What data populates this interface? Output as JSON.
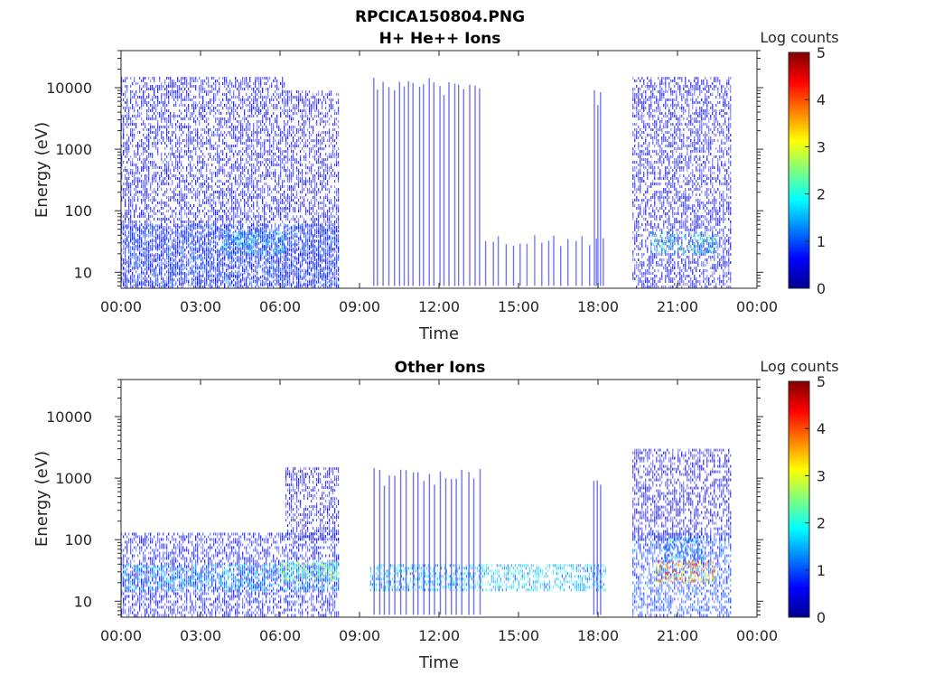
{
  "figure": {
    "title": "RPCICA150804.PNG"
  },
  "chart_data": [
    {
      "type": "heatmap",
      "title": "H+ He++ Ions",
      "xlabel": "Time",
      "ylabel": "Energy (eV)",
      "x_tick_labels": [
        "00:00",
        "03:00",
        "06:00",
        "09:00",
        "12:00",
        "15:00",
        "18:00",
        "21:00",
        "00:00"
      ],
      "x_tick_hours": [
        0,
        3,
        6,
        9,
        12,
        15,
        18,
        21,
        24
      ],
      "xlim_hours": [
        0,
        24
      ],
      "y_scale": "log",
      "ylim": [
        5.5,
        40000
      ],
      "y_ticks": [
        10,
        100,
        1000,
        10000
      ],
      "y_tick_labels": [
        "10",
        "100",
        "1000",
        "10000"
      ],
      "colorbar": {
        "label": "Log counts",
        "range": [
          0,
          5
        ],
        "ticks": [
          "0",
          "1",
          "2",
          "3",
          "4",
          "5"
        ],
        "colormap": "jet"
      },
      "data_segments_hours": [
        [
          0,
          8.2
        ],
        [
          9.4,
          13.6
        ],
        [
          13.6,
          18.3
        ],
        [
          19.3,
          23.0
        ]
      ],
      "dense_blocks": [
        {
          "t": [
            0,
            6.2
          ],
          "e": [
            6,
            15000
          ],
          "level": 0.55
        },
        {
          "t": [
            6.2,
            8.2
          ],
          "e": [
            6,
            9000
          ],
          "level": 0.45
        },
        {
          "t": [
            19.3,
            23.0
          ],
          "e": [
            6,
            15000
          ],
          "level": 0.5
        },
        {
          "t": [
            0,
            8.2
          ],
          "e": [
            6,
            60
          ],
          "level": 0.9
        },
        {
          "t": [
            3.8,
            6.2
          ],
          "e": [
            20,
            45
          ],
          "level": 1.6
        },
        {
          "t": [
            20.0,
            22.5
          ],
          "e": [
            20,
            45
          ],
          "level": 1.9
        }
      ],
      "vertical_streaks": [
        {
          "t": [
            9.4,
            13.6
          ],
          "count": 22,
          "e": [
            6,
            15000
          ],
          "level": 0.5
        },
        {
          "t": [
            17.8,
            18.1
          ],
          "count": 3,
          "e": [
            6,
            10000
          ],
          "level": 0.6
        },
        {
          "t": [
            13.6,
            18.3
          ],
          "count": 18,
          "e": [
            6,
            40
          ],
          "level": 0.6
        }
      ]
    },
    {
      "type": "heatmap",
      "title": "Other Ions",
      "xlabel": "Time",
      "ylabel": "Energy (eV)",
      "x_tick_labels": [
        "00:00",
        "03:00",
        "06:00",
        "09:00",
        "12:00",
        "15:00",
        "18:00",
        "21:00",
        "00:00"
      ],
      "x_tick_hours": [
        0,
        3,
        6,
        9,
        12,
        15,
        18,
        21,
        24
      ],
      "xlim_hours": [
        0,
        24
      ],
      "y_scale": "log",
      "ylim": [
        5.5,
        40000
      ],
      "y_ticks": [
        10,
        100,
        1000,
        10000
      ],
      "y_tick_labels": [
        "10",
        "100",
        "1000",
        "10000"
      ],
      "colorbar": {
        "label": "Log counts",
        "range": [
          0,
          5
        ],
        "ticks": [
          "0",
          "1",
          "2",
          "3",
          "4",
          "5"
        ],
        "colormap": "jet"
      },
      "data_segments_hours": [
        [
          0,
          8.2
        ],
        [
          9.4,
          18.3
        ],
        [
          19.3,
          23.0
        ]
      ],
      "dense_blocks": [
        {
          "t": [
            0,
            8.2
          ],
          "e": [
            6,
            130
          ],
          "level": 0.6
        },
        {
          "t": [
            0,
            8.2
          ],
          "e": [
            15,
            40
          ],
          "level": 1.4
        },
        {
          "t": [
            6.0,
            8.2
          ],
          "e": [
            20,
            45
          ],
          "level": 2.2
        },
        {
          "t": [
            6.2,
            8.2
          ],
          "e": [
            100,
            1500
          ],
          "level": 0.4
        },
        {
          "t": [
            9.4,
            18.3
          ],
          "e": [
            15,
            40
          ],
          "level": 1.6
        },
        {
          "t": [
            19.3,
            23.0
          ],
          "e": [
            6,
            130
          ],
          "level": 0.9
        },
        {
          "t": [
            19.3,
            23.0
          ],
          "e": [
            100,
            3000
          ],
          "level": 0.4
        },
        {
          "t": [
            20.2,
            22.4
          ],
          "e": [
            20,
            45
          ],
          "level": 3.4
        },
        {
          "t": [
            20.5,
            22.0
          ],
          "e": [
            45,
            110
          ],
          "level": 1.3
        }
      ],
      "vertical_streaks": [
        {
          "t": [
            9.4,
            13.6
          ],
          "count": 20,
          "e": [
            6,
            1500
          ],
          "level": 0.4
        },
        {
          "t": [
            17.8,
            18.1
          ],
          "count": 3,
          "e": [
            6,
            1000
          ],
          "level": 0.5
        }
      ]
    }
  ]
}
